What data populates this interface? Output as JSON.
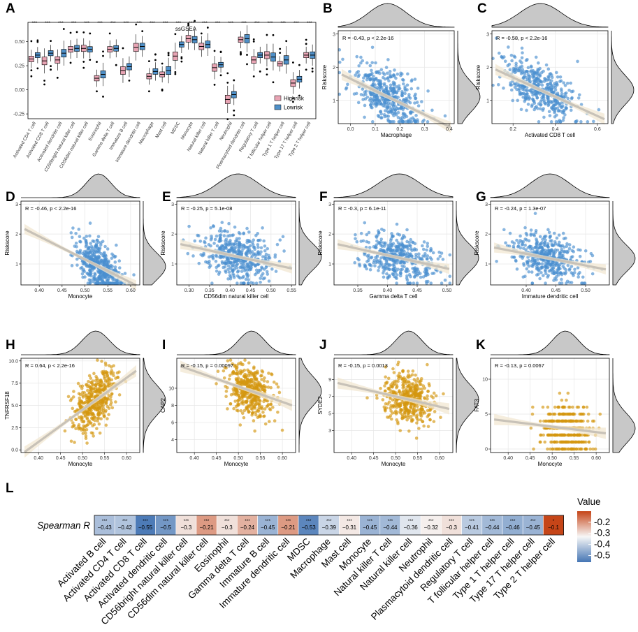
{
  "colors": {
    "highrisk": "#e8a4b4",
    "lowrisk": "#4f90c8",
    "scatter_blue": "#4a8fd0",
    "scatter_gold": "#d4960f",
    "fit_line": "#c8c2b8",
    "fit_band": "#f1e7d2",
    "density_fill": "#c8c8c8",
    "grid": "#e6e6e6"
  },
  "chart_data": [
    {
      "panel": "A",
      "type": "boxplot",
      "title": "ssGSEA",
      "ylim": [
        -0.3,
        0.7
      ],
      "yticks": [
        -0.25,
        0.0,
        0.25,
        0.5
      ],
      "ytick_labels": [
        "-0.25",
        "0.00",
        "0.25",
        "0.50"
      ],
      "significance": "***",
      "legend": [
        "Highrisk",
        "Lowrisk"
      ],
      "categories": [
        "Activated CD4 T cell",
        "Activated CD8 T cell",
        "Activated dendritic cell",
        "CD56bright natural killer cell",
        "CD56dim natural killer cell",
        "Eosinophil",
        "Gamma delta T cell",
        "Immature B cell",
        "Immature dendritic cell",
        "Macrophage",
        "Mast cell",
        "MDSC",
        "Monocyte",
        "Natural killer cell",
        "Natural killer T cell",
        "Neutrophil",
        "Plasmacytoid dendritic cell",
        "Regulatory T cell",
        "T follicular helper cell",
        "Type 1 T helper cell",
        "Type 17 T helper cell",
        "Type 2 T helper cell"
      ],
      "series": [
        {
          "name": "Highrisk",
          "medians": [
            0.32,
            0.3,
            0.31,
            0.42,
            0.43,
            0.12,
            0.42,
            0.2,
            0.44,
            0.14,
            0.16,
            0.35,
            0.53,
            0.45,
            0.23,
            -0.1,
            0.52,
            0.31,
            0.36,
            0.27,
            0.07,
            0.36
          ]
        },
        {
          "name": "Lowrisk",
          "medians": [
            0.36,
            0.38,
            0.38,
            0.43,
            0.42,
            0.16,
            0.43,
            0.24,
            0.45,
            0.19,
            0.2,
            0.47,
            0.52,
            0.47,
            0.26,
            -0.05,
            0.53,
            0.36,
            0.34,
            0.31,
            0.11,
            0.36
          ]
        }
      ]
    },
    {
      "panel": "B",
      "type": "scatter",
      "xlabel": "Macrophage",
      "ylabel": "Riskscore",
      "stat": "R = -0.43, p < 2.2e-16",
      "xlim": [
        -0.05,
        0.42
      ],
      "ylim": [
        0.3,
        3.1
      ],
      "xticks": [
        0.0,
        0.1,
        0.2,
        0.3,
        0.4
      ],
      "xtick_labels": [
        "0.0",
        "0.1",
        "0.2",
        "0.3",
        "0.4"
      ],
      "yticks": [
        1,
        2,
        3
      ],
      "x_center": 0.15,
      "x_spread": 0.07,
      "fit": {
        "slope": -3.6,
        "intercept": 1.65
      },
      "n_points": 430
    },
    {
      "panel": "C",
      "type": "scatter",
      "xlabel": "Activated CD8 T cell",
      "ylabel": "Riskscore",
      "stat": "R = -0.58, p < 2.2e-16",
      "xlim": [
        0.1,
        0.65
      ],
      "ylim": [
        0.3,
        3.1
      ],
      "xticks": [
        0.2,
        0.4,
        0.6
      ],
      "xtick_labels": [
        "0.2",
        "0.4",
        "0.6"
      ],
      "yticks": [
        1,
        2,
        3
      ],
      "x_center": 0.33,
      "x_spread": 0.09,
      "fit": {
        "slope": -2.9,
        "intercept": 2.27
      },
      "n_points": 430
    },
    {
      "panel": "D",
      "type": "scatter",
      "xlabel": "Monocyte",
      "ylabel": "Riskscore",
      "stat": "R = -0.46, p < 2.2e-16",
      "xlim": [
        0.36,
        0.62
      ],
      "ylim": [
        0.3,
        3.1
      ],
      "xticks": [
        0.4,
        0.45,
        0.5,
        0.55,
        0.6
      ],
      "xtick_labels": [
        "0.40",
        "0.45",
        "0.50",
        "0.55",
        "0.60"
      ],
      "yticks": [
        1,
        2,
        3
      ],
      "x_center": 0.53,
      "x_spread": 0.025,
      "fit": {
        "slope": -7.7,
        "intercept": 5.0
      },
      "n_points": 430
    },
    {
      "panel": "E",
      "type": "scatter",
      "xlabel": "CD56dim natural killer cell",
      "ylabel": "Riskscore",
      "stat": "R = -0.25, p = 5.1e-08",
      "xlim": [
        0.27,
        0.56
      ],
      "ylim": [
        0.3,
        3.1
      ],
      "xticks": [
        0.3,
        0.35,
        0.4,
        0.45,
        0.5,
        0.55
      ],
      "xtick_labels": [
        "0.30",
        "0.35",
        "0.40",
        "0.45",
        "0.50",
        "0.55"
      ],
      "yticks": [
        1,
        2,
        3
      ],
      "x_center": 0.42,
      "x_spread": 0.045,
      "fit": {
        "slope": -3.0,
        "intercept": 2.5
      },
      "n_points": 430
    },
    {
      "panel": "F",
      "type": "scatter",
      "xlabel": "Gamma delta T cell",
      "ylabel": "Riskscore",
      "stat": "R = -0.3, p = 6.1e-11",
      "xlim": [
        0.31,
        0.51
      ],
      "ylim": [
        0.3,
        3.1
      ],
      "xticks": [
        0.35,
        0.4,
        0.45,
        0.5
      ],
      "xtick_labels": [
        "0.35",
        "0.40",
        "0.45",
        "0.50"
      ],
      "yticks": [
        1,
        2,
        3
      ],
      "x_center": 0.42,
      "x_spread": 0.032,
      "fit": {
        "slope": -4.4,
        "intercept": 3.05
      },
      "n_points": 430
    },
    {
      "panel": "G",
      "type": "scatter",
      "xlabel": "Immature dendritic cell",
      "ylabel": "Riskscore",
      "stat": "R = -0.24, p = 1.3e-07",
      "xlim": [
        0.34,
        0.54
      ],
      "ylim": [
        0.3,
        3.1
      ],
      "xticks": [
        0.4,
        0.45,
        0.5
      ],
      "xtick_labels": [
        "0.40",
        "0.45",
        "0.50"
      ],
      "yticks": [
        1,
        2,
        3
      ],
      "x_center": 0.44,
      "x_spread": 0.03,
      "fit": {
        "slope": -3.9,
        "intercept": 2.9
      },
      "n_points": 430
    },
    {
      "panel": "H",
      "type": "scatter",
      "xlabel": "Monocyte",
      "ylabel": "TNFRSF18",
      "stat": "R = 0.64, p < 2.2e-16",
      "xlim": [
        0.36,
        0.63
      ],
      "ylim": [
        -0.3,
        10.3
      ],
      "xticks": [
        0.4,
        0.45,
        0.5,
        0.55,
        0.6
      ],
      "xtick_labels": [
        "0.40",
        "0.45",
        "0.50",
        "0.55",
        "0.60"
      ],
      "yticks": [
        0.0,
        2.5,
        5.0,
        7.5,
        10.0
      ],
      "ytick_labels": [
        "0.0",
        "2.5",
        "5.0",
        "7.5",
        "10.0"
      ],
      "x_center": 0.53,
      "x_spread": 0.028,
      "fit": {
        "slope": 36.0,
        "intercept": -13.5
      },
      "n_points": 430
    },
    {
      "panel": "I",
      "type": "scatter",
      "xlabel": "Monocyte",
      "ylabel": "CAP2",
      "stat": "R = -0.15, p = 0.00097",
      "xlim": [
        0.36,
        0.63
      ],
      "ylim": [
        2.5,
        13.5
      ],
      "xticks": [
        0.4,
        0.45,
        0.5,
        0.55,
        0.6
      ],
      "xtick_labels": [
        "0.40",
        "0.45",
        "0.50",
        "0.55",
        "0.60"
      ],
      "yticks": [
        4,
        6,
        8,
        10
      ],
      "x_center": 0.53,
      "x_spread": 0.027,
      "fit": {
        "slope": -18.0,
        "intercept": 19.2
      },
      "n_points": 430
    },
    {
      "panel": "J",
      "type": "scatter",
      "xlabel": "Monocyte",
      "ylabel": "SYDE2",
      "stat": "R = -0.15, p = 0.0013",
      "xlim": [
        0.36,
        0.63
      ],
      "ylim": [
        0.4,
        11.5
      ],
      "xticks": [
        0.4,
        0.45,
        0.5,
        0.55,
        0.6
      ],
      "xtick_labels": [
        "0.40",
        "0.45",
        "0.50",
        "0.55",
        "0.60"
      ],
      "yticks": [
        3,
        5,
        7,
        9
      ],
      "x_center": 0.53,
      "x_spread": 0.027,
      "fit": {
        "slope": -12.0,
        "intercept": 13.0
      },
      "n_points": 430
    },
    {
      "panel": "K",
      "type": "scatter",
      "xlabel": "Monocyte",
      "ylabel": "FAT3",
      "stat": "R = -0.13, p = 0.0067",
      "xlim": [
        0.36,
        0.63
      ],
      "ylim": [
        -0.5,
        13.0
      ],
      "xticks": [
        0.4,
        0.45,
        0.5,
        0.55,
        0.6
      ],
      "xtick_labels": [
        "0.40",
        "0.45",
        "0.50",
        "0.55",
        "0.60"
      ],
      "yticks": [
        0,
        5,
        10
      ],
      "x_center": 0.53,
      "x_spread": 0.027,
      "fit": {
        "slope": -7.8,
        "intercept": 7.1
      },
      "n_points": 430
    },
    {
      "panel": "L",
      "type": "heatmap",
      "row_label": "Spearman R",
      "legend_title": "Value",
      "legend_ticks": [
        -0.2,
        -0.3,
        -0.4,
        -0.5
      ],
      "legend_tick_labels": [
        "-0.2",
        "-0.3",
        "-0.4",
        "-0.5"
      ],
      "legend_range": [
        -0.56,
        -0.1
      ],
      "categories": [
        "Activated B cell",
        "Activated CD4 T cell",
        "Activated CD8 T cell",
        "Activated dendritic cell",
        "CD56bright natural killer cell",
        "CD56dim natural killer cell",
        "Eosinophil",
        "Gamma delta T cell",
        "Immature B cell",
        "Immature dendritic cell",
        "MDSC",
        "Macrophage",
        "Mast cell",
        "Monocyte",
        "Natural killer T cell",
        "Natural killer cell",
        "Neutrophil",
        "Plasmacytoid dendritic cell",
        "Regulatory T cell",
        "T follicular helper cell",
        "Type 1 T helper cell",
        "Type 17 T helper cell",
        "Type 2 T helper cell"
      ],
      "values": [
        -0.43,
        -0.42,
        -0.55,
        -0.5,
        -0.3,
        -0.21,
        -0.3,
        -0.24,
        -0.45,
        -0.21,
        -0.53,
        -0.39,
        -0.31,
        -0.45,
        -0.44,
        -0.36,
        -0.32,
        -0.3,
        -0.41,
        -0.44,
        -0.46,
        -0.45,
        -0.1
      ],
      "value_labels": [
        "−0.43",
        "−0.42",
        "−0.55",
        "−0.5",
        "−0.3",
        "−0.21",
        "−0.3",
        "−0.24",
        "−0.45",
        "−0.21",
        "−0.53",
        "−0.39",
        "−0.31",
        "−0.45",
        "−0.44",
        "−0.36",
        "−0.32",
        "−0.3",
        "−0.41",
        "−0.44",
        "−0.46",
        "−0.45",
        "−0.1"
      ],
      "stars": [
        "***",
        "***",
        "***",
        "***",
        "***",
        "***",
        "***",
        "***",
        "***",
        "***",
        "***",
        "***",
        "***",
        "***",
        "***",
        "***",
        "***",
        "***",
        "***",
        "***",
        "***",
        "***",
        "*"
      ]
    }
  ]
}
